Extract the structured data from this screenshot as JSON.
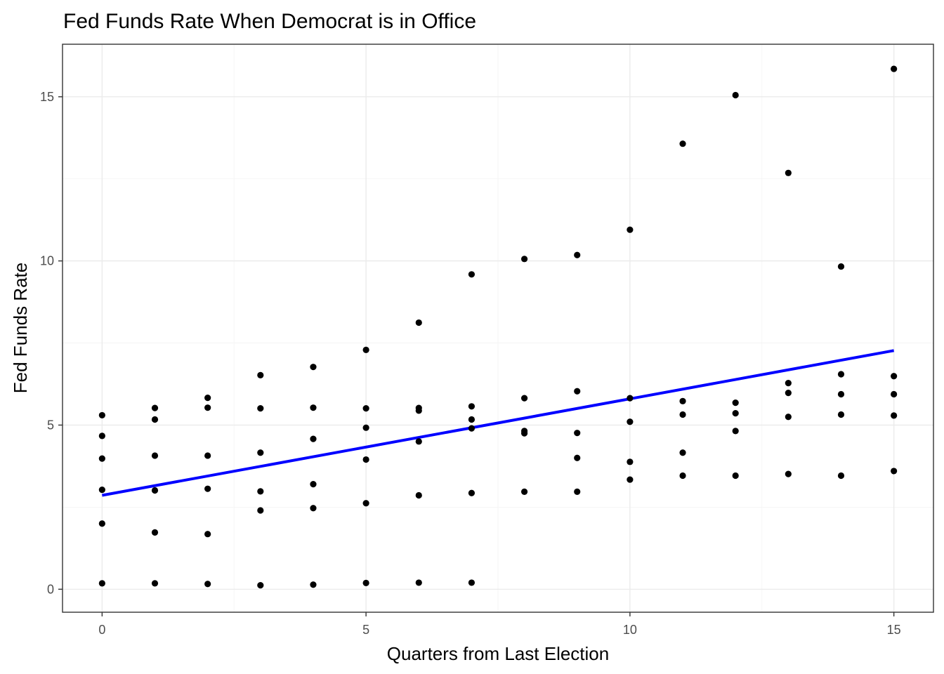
{
  "chart_data": {
    "type": "scatter",
    "title": "Fed Funds Rate When Democrat is in Office",
    "xlabel": "Quarters from Last Election",
    "ylabel": "Fed Funds Rate",
    "xlim": [
      -0.75,
      15.75
    ],
    "ylim": [
      -0.7,
      16.6
    ],
    "x_ticks": [
      0,
      5,
      10,
      15
    ],
    "y_ticks": [
      0,
      5,
      10,
      15
    ],
    "grid": true,
    "colors": {
      "points": "#000000",
      "trend": "#0000ff",
      "grid": "#ebebeb",
      "border": "#333333"
    },
    "points": [
      [
        0,
        5.3
      ],
      [
        0,
        4.67
      ],
      [
        0,
        3.98
      ],
      [
        0,
        3.03
      ],
      [
        0,
        2.0
      ],
      [
        0,
        0.18
      ],
      [
        1,
        5.52
      ],
      [
        1,
        5.17
      ],
      [
        1,
        4.07
      ],
      [
        1,
        3.01
      ],
      [
        1,
        1.73
      ],
      [
        1,
        0.18
      ],
      [
        2,
        5.83
      ],
      [
        2,
        5.53
      ],
      [
        2,
        4.07
      ],
      [
        2,
        3.06
      ],
      [
        2,
        1.68
      ],
      [
        2,
        0.16
      ],
      [
        3,
        6.52
      ],
      [
        3,
        5.51
      ],
      [
        3,
        4.16
      ],
      [
        3,
        2.98
      ],
      [
        3,
        2.4
      ],
      [
        3,
        0.12
      ],
      [
        4,
        6.77
      ],
      [
        4,
        5.53
      ],
      [
        4,
        4.58
      ],
      [
        4,
        3.2
      ],
      [
        4,
        2.47
      ],
      [
        4,
        0.14
      ],
      [
        5,
        7.29
      ],
      [
        5,
        5.51
      ],
      [
        5,
        4.92
      ],
      [
        5,
        3.95
      ],
      [
        5,
        2.62
      ],
      [
        5,
        0.19
      ],
      [
        6,
        8.12
      ],
      [
        6,
        5.52
      ],
      [
        6,
        5.44
      ],
      [
        6,
        4.5
      ],
      [
        6,
        2.86
      ],
      [
        6,
        0.2
      ],
      [
        7,
        9.59
      ],
      [
        7,
        5.57
      ],
      [
        7,
        5.17
      ],
      [
        7,
        4.9
      ],
      [
        7,
        2.93
      ],
      [
        7,
        0.2
      ],
      [
        8,
        10.06
      ],
      [
        8,
        5.82
      ],
      [
        8,
        4.82
      ],
      [
        8,
        4.75
      ],
      [
        8,
        2.97
      ],
      [
        9,
        10.18
      ],
      [
        9,
        6.03
      ],
      [
        9,
        4.76
      ],
      [
        9,
        4.0
      ],
      [
        9,
        2.97
      ],
      [
        10,
        10.95
      ],
      [
        10,
        5.82
      ],
      [
        10,
        5.1
      ],
      [
        10,
        3.88
      ],
      [
        10,
        3.34
      ],
      [
        11,
        13.57
      ],
      [
        11,
        5.73
      ],
      [
        11,
        5.32
      ],
      [
        11,
        4.16
      ],
      [
        11,
        3.46
      ],
      [
        12,
        15.05
      ],
      [
        12,
        5.68
      ],
      [
        12,
        5.36
      ],
      [
        12,
        4.82
      ],
      [
        12,
        3.46
      ],
      [
        13,
        12.68
      ],
      [
        13,
        6.28
      ],
      [
        13,
        5.98
      ],
      [
        13,
        5.25
      ],
      [
        13,
        3.51
      ],
      [
        14,
        9.83
      ],
      [
        14,
        6.55
      ],
      [
        14,
        5.94
      ],
      [
        14,
        5.32
      ],
      [
        14,
        3.46
      ],
      [
        15,
        15.85
      ],
      [
        15,
        6.49
      ],
      [
        15,
        5.94
      ],
      [
        15,
        5.29
      ],
      [
        15,
        3.6
      ]
    ],
    "trend_line": {
      "x": [
        0,
        15
      ],
      "y": [
        2.86,
        7.27
      ]
    }
  }
}
